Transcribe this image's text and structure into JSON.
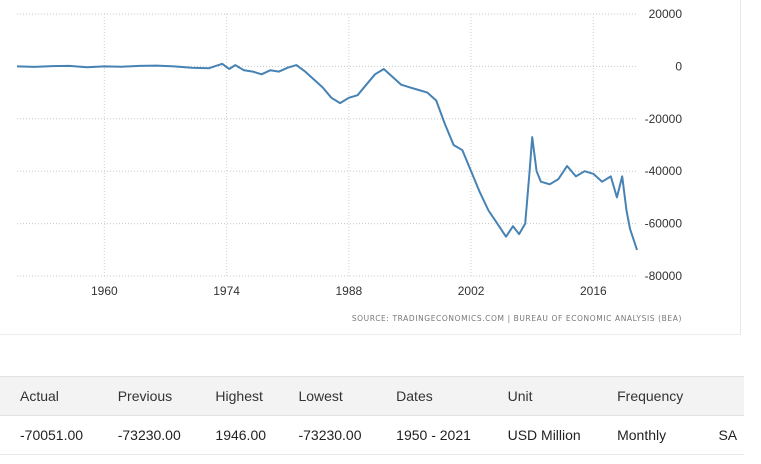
{
  "chart_data": {
    "type": "line",
    "x_axis": {
      "min": 1950,
      "max": 2021,
      "ticks": [
        1960,
        1974,
        1988,
        2002,
        2016
      ]
    },
    "y_axis": {
      "min": -80000,
      "max": 20000,
      "ticks": [
        20000,
        0,
        -20000,
        -40000,
        -60000,
        -80000
      ],
      "position": "right"
    },
    "grid": true,
    "series": [
      {
        "color": "#4682b4",
        "points": [
          [
            1950.0,
            0
          ],
          [
            1952.0,
            -200
          ],
          [
            1954.0,
            100
          ],
          [
            1956.0,
            200
          ],
          [
            1958.0,
            -300
          ],
          [
            1960.0,
            0
          ],
          [
            1962.0,
            -100
          ],
          [
            1964.0,
            200
          ],
          [
            1966.0,
            300
          ],
          [
            1968.0,
            0
          ],
          [
            1970.0,
            -500
          ],
          [
            1972.0,
            -700
          ],
          [
            1973.5,
            1000
          ],
          [
            1974.3,
            -1000
          ],
          [
            1975.0,
            500
          ],
          [
            1976.0,
            -1500
          ],
          [
            1977.0,
            -2000
          ],
          [
            1978.0,
            -3000
          ],
          [
            1979.0,
            -1500
          ],
          [
            1980.0,
            -2000
          ],
          [
            1981.0,
            -500
          ],
          [
            1982.0,
            500
          ],
          [
            1983.0,
            -2000
          ],
          [
            1984.0,
            -5000
          ],
          [
            1985.0,
            -8000
          ],
          [
            1986.0,
            -12000
          ],
          [
            1987.0,
            -14000
          ],
          [
            1988.0,
            -12000
          ],
          [
            1989.0,
            -11000
          ],
          [
            1990.0,
            -7000
          ],
          [
            1991.0,
            -3000
          ],
          [
            1992.0,
            -1000
          ],
          [
            1993.0,
            -4000
          ],
          [
            1994.0,
            -7000
          ],
          [
            1995.0,
            -8000
          ],
          [
            1996.0,
            -9000
          ],
          [
            1997.0,
            -10000
          ],
          [
            1998.0,
            -13000
          ],
          [
            1999.0,
            -22000
          ],
          [
            2000.0,
            -30000
          ],
          [
            2001.0,
            -32000
          ],
          [
            2002.0,
            -40000
          ],
          [
            2003.0,
            -48000
          ],
          [
            2004.0,
            -55000
          ],
          [
            2005.0,
            -60000
          ],
          [
            2006.0,
            -65000
          ],
          [
            2006.8,
            -61000
          ],
          [
            2007.5,
            -64000
          ],
          [
            2008.2,
            -60000
          ],
          [
            2008.7,
            -40000
          ],
          [
            2009.0,
            -27000
          ],
          [
            2009.5,
            -40000
          ],
          [
            2010.0,
            -44000
          ],
          [
            2011.0,
            -45000
          ],
          [
            2012.0,
            -43000
          ],
          [
            2013.0,
            -38000
          ],
          [
            2014.0,
            -42000
          ],
          [
            2015.0,
            -40000
          ],
          [
            2016.0,
            -41000
          ],
          [
            2017.0,
            -44000
          ],
          [
            2018.0,
            -42000
          ],
          [
            2018.7,
            -50000
          ],
          [
            2019.3,
            -42000
          ],
          [
            2019.8,
            -55000
          ],
          [
            2020.2,
            -62000
          ],
          [
            2020.6,
            -66000
          ],
          [
            2021.0,
            -70051
          ]
        ]
      }
    ]
  },
  "source": "SOURCE: TRADINGECONOMICS.COM | BUREAU OF ECONOMIC ANALYSIS (BEA)",
  "table": {
    "headers": [
      "Actual",
      "Previous",
      "Highest",
      "Lowest",
      "Dates",
      "Unit",
      "Frequency",
      ""
    ],
    "values": [
      "-70051.00",
      "-73230.00",
      "1946.00",
      "-73230.00",
      "1950 - 2021",
      "USD Million",
      "Monthly",
      "SA"
    ]
  }
}
